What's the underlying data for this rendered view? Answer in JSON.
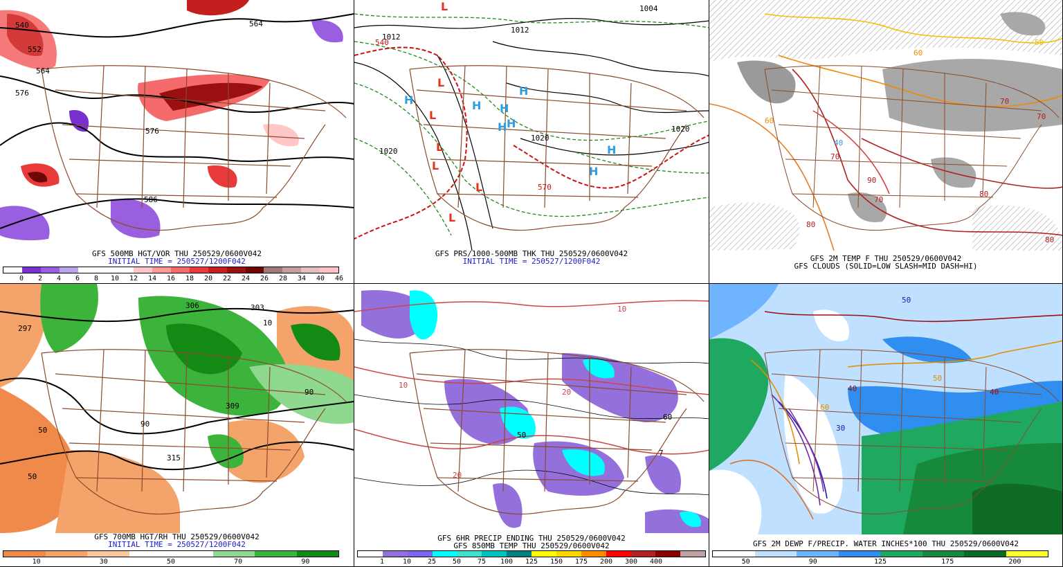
{
  "panels": [
    {
      "id": "p1",
      "caption_lines": [
        "GFS 500MB HGT/VOR THU 250529/0600V042",
        "INITIAL TIME = 250527/1200F042"
      ],
      "colors": [
        "#ffffff",
        "#7a2fd0",
        "#9a5ee0",
        "#b9a3ea",
        "#ffffff",
        "#ffffff",
        "#ffffff",
        "#ffc7c7",
        "#ff9a9a",
        "#f56a6a",
        "#e83a3a",
        "#c51e1e",
        "#9a1010",
        "#6e0707",
        "#a07a7a",
        "#c2a0a0",
        "#e0c0c0",
        "#ffc0c8"
      ],
      "tick_labels": [
        "0",
        "2",
        "4",
        "6",
        "8",
        "10",
        "12",
        "14",
        "16",
        "18",
        "20",
        "22",
        "24",
        "26",
        "28",
        "34",
        "40",
        "46"
      ],
      "contour_labels": [
        "540",
        "552",
        "564",
        "576",
        "564",
        "576",
        "586"
      ]
    },
    {
      "id": "p2",
      "caption_lines": [
        "GFS PRS/1000-500MB THK THU 250529/0600V042",
        "INITIAL TIME = 250527/1200F042"
      ],
      "contour_labels": [
        "1012",
        "540",
        "1012",
        "1020",
        "1020",
        "1020",
        "570",
        "1004"
      ],
      "high_label": "H",
      "low_label": "L"
    },
    {
      "id": "p3",
      "caption_lines": [
        "GFS 2M TEMP F THU 250529/0600V042",
        "GFS CLOUDS (SOLID=LOW SLASH=MID DASH=HI)"
      ],
      "contour_labels": [
        "50",
        "60",
        "60",
        "70",
        "70",
        "70",
        "80",
        "80",
        "80",
        "90",
        "70",
        "40"
      ]
    },
    {
      "id": "p4",
      "caption_lines": [
        "GFS 700MB HGT/RH THU 250529/0600V042",
        "INITIAL TIME = 250527/1200F042"
      ],
      "colors": [
        "#f08a4a",
        "#f4a46a",
        "#f8c89a",
        "#ffffff",
        "#ffffff",
        "#8fd88f",
        "#3cb43c",
        "#138a13"
      ],
      "tick_labels": [
        "10",
        "30",
        "50",
        "70",
        "90"
      ],
      "contour_labels": [
        "297",
        "303",
        "306",
        "309",
        "315",
        "10",
        "50",
        "50",
        "90",
        "90"
      ]
    },
    {
      "id": "p5",
      "caption_lines": [
        "GFS 6HR PRECIP ENDING THU 250529/0600V042",
        "GFS 850MB TEMP THU 250529/0600V042"
      ],
      "colors": [
        "#ffffff",
        "#9370db",
        "#7b68ee",
        "#00ffff",
        "#40e0d0",
        "#00c0c0",
        "#008080",
        "#ffff00",
        "#ffd700",
        "#ff8c00",
        "#ff0000",
        "#b22222",
        "#8b0000",
        "#c0a0a0"
      ],
      "tick_labels": [
        "1",
        "10",
        "25",
        "50",
        "75",
        "100",
        "125",
        "150",
        "175",
        "200",
        "300",
        "400"
      ],
      "contour_labels": [
        "10",
        "20",
        "10",
        "20",
        "7",
        "60",
        "50"
      ]
    },
    {
      "id": "p6",
      "caption_lines": [
        "GFS 2M DEWP F/PRECIP. WATER INCHES*100 THU 250529/0600V042"
      ],
      "colors": [
        "#ffffff",
        "#bfe0ff",
        "#6fb4ff",
        "#2f8ef0",
        "#1ea860",
        "#168a3a",
        "#0e6b24",
        "#ffff33"
      ],
      "tick_labels": [
        "50",
        "90",
        "125",
        "175",
        "200"
      ],
      "contour_labels": [
        "50",
        "40",
        "30",
        "60",
        "50",
        "40"
      ]
    }
  ]
}
